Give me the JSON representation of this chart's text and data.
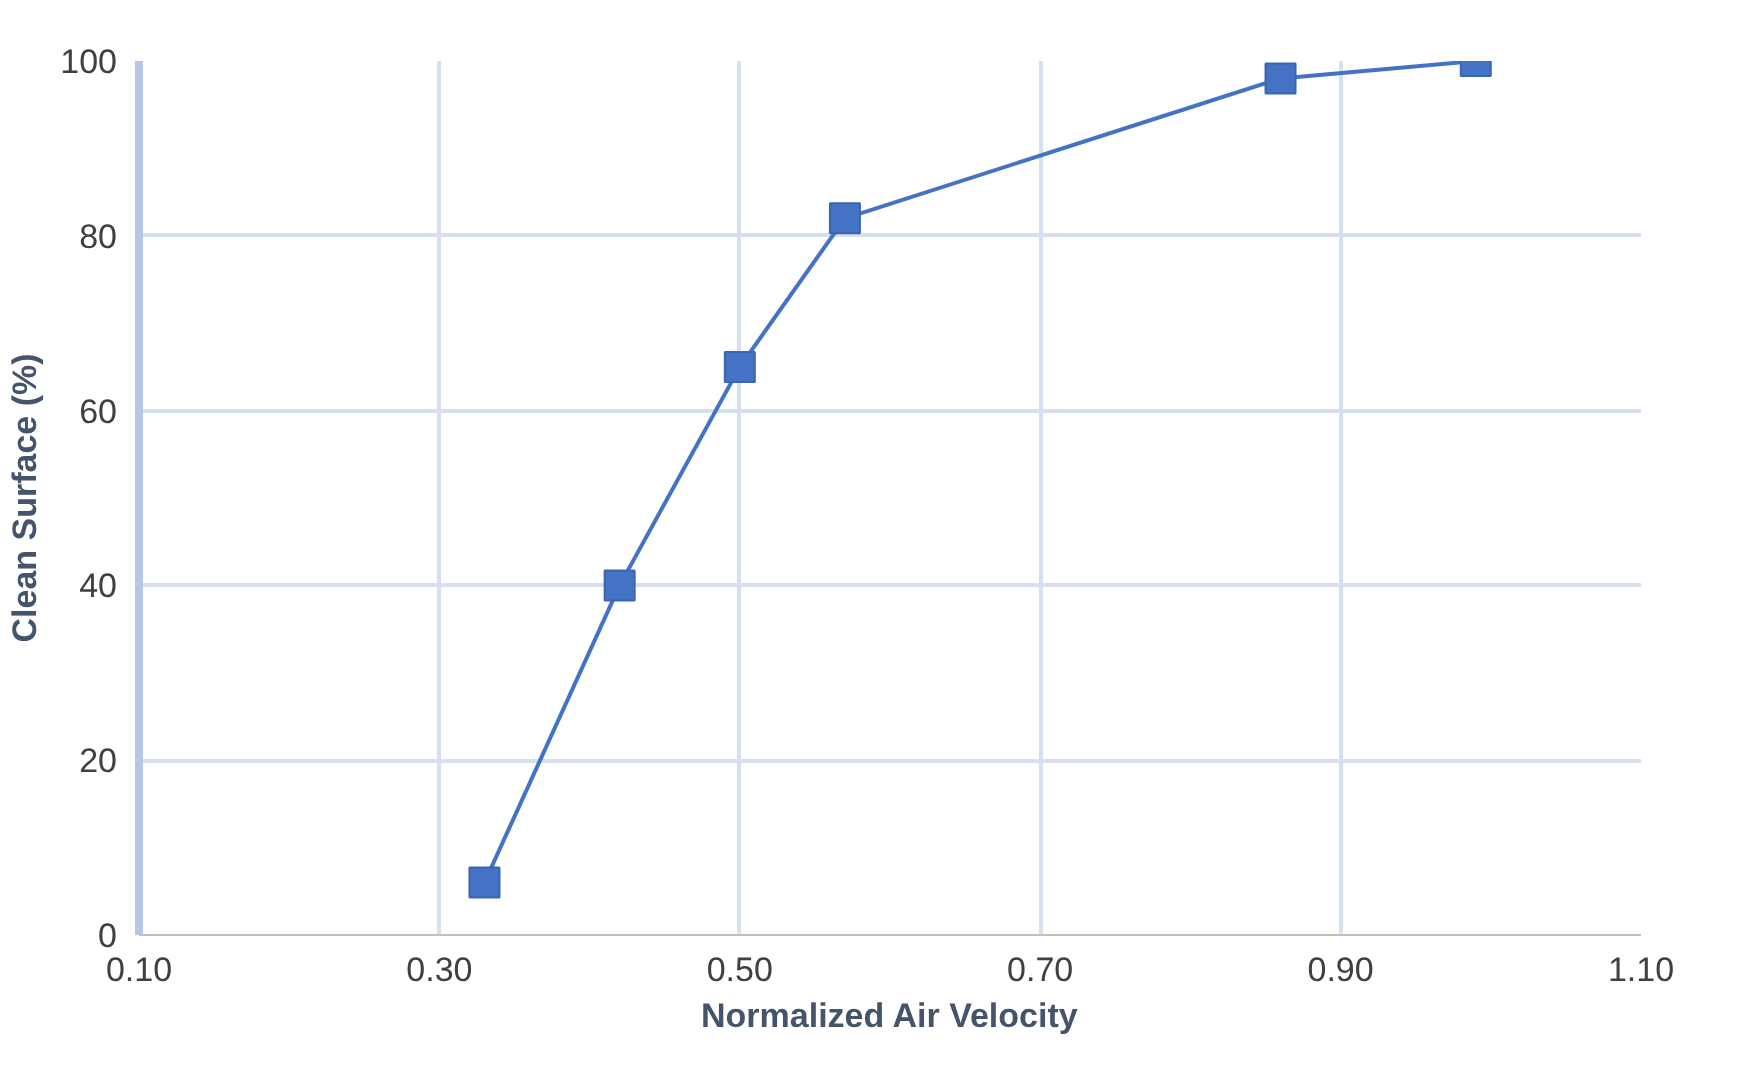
{
  "chart_data": {
    "type": "line",
    "xlabel": "Normalized Air Velocity",
    "ylabel": "Clean Surface (%)",
    "x": [
      0.33,
      0.42,
      0.5,
      0.57,
      0.86,
      0.99
    ],
    "series": [
      {
        "color": "#4472c4",
        "values": [
          6,
          40,
          65,
          82,
          98,
          100
        ]
      }
    ],
    "xlim": [
      0.1,
      1.1
    ],
    "xticks": [
      {
        "value": 0.1,
        "label": "0.10"
      },
      {
        "value": 0.3,
        "label": "0.30"
      },
      {
        "value": 0.5,
        "label": "0.50"
      },
      {
        "value": 0.7,
        "label": "0.70"
      },
      {
        "value": 0.9,
        "label": "0.90"
      },
      {
        "value": 1.1,
        "label": "1.10"
      }
    ],
    "ylim": [
      0,
      100
    ],
    "yticks": [
      0,
      20,
      40,
      60,
      80,
      100
    ],
    "grid": true,
    "marker": "square",
    "line_style": "solid"
  }
}
